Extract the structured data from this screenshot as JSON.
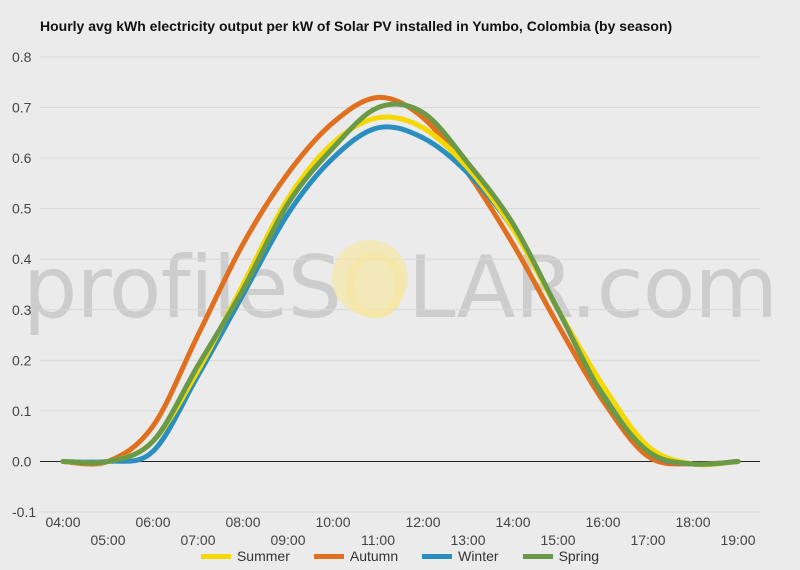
{
  "title": "Hourly avg kWh electricity output per kW of Solar PV installed in Yumbo, Colombia (by season)",
  "watermark": {
    "part1": "profileS",
    "part2": "O",
    "part3": "LAR.com"
  },
  "colors": {
    "background": "#ebebeb",
    "grid": "#d8d8d8",
    "zero_line": "#222222",
    "sun": "#f6e7a8"
  },
  "chart_data": {
    "type": "line",
    "title": "Hourly avg kWh electricity output per kW of Solar PV installed in Yumbo, Colombia (by season)",
    "xlabel": "",
    "ylabel": "",
    "x": [
      "04:00",
      "05:00",
      "06:00",
      "07:00",
      "08:00",
      "09:00",
      "10:00",
      "11:00",
      "12:00",
      "13:00",
      "14:00",
      "15:00",
      "16:00",
      "17:00",
      "18:00",
      "19:00"
    ],
    "x_ticks_upper": [
      "04:00",
      "06:00",
      "08:00",
      "10:00",
      "12:00",
      "14:00",
      "16:00",
      "18:00"
    ],
    "x_ticks_lower": [
      "05:00",
      "07:00",
      "09:00",
      "11:00",
      "13:00",
      "15:00",
      "17:00",
      "19:00"
    ],
    "y_ticks": [
      0.8,
      0.7,
      0.6,
      0.5,
      0.4,
      0.3,
      0.2,
      0.1,
      0.0,
      -0.1
    ],
    "y_tick_labels": [
      "0.8",
      "0.7",
      "0.6",
      "0.5",
      "0.4",
      "0.3",
      "0.2",
      "0.1",
      "0.0",
      "-0.1"
    ],
    "ylim": [
      -0.1,
      0.8
    ],
    "grid": true,
    "legend_position": "bottom",
    "series": [
      {
        "name": "Summer",
        "color": "#f5d800",
        "values": [
          0.0,
          0.0,
          0.04,
          0.18,
          0.35,
          0.52,
          0.63,
          0.68,
          0.66,
          0.58,
          0.46,
          0.3,
          0.15,
          0.03,
          -0.005,
          0.0
        ]
      },
      {
        "name": "Autumn",
        "color": "#e07020",
        "values": [
          0.0,
          0.0,
          0.07,
          0.25,
          0.43,
          0.57,
          0.67,
          0.72,
          0.68,
          0.57,
          0.43,
          0.27,
          0.12,
          0.01,
          -0.005,
          0.0
        ]
      },
      {
        "name": "Winter",
        "color": "#2a8fc0",
        "values": [
          0.0,
          0.0,
          0.02,
          0.17,
          0.33,
          0.49,
          0.6,
          0.66,
          0.64,
          0.57,
          0.46,
          0.3,
          0.14,
          0.02,
          -0.005,
          0.0
        ]
      },
      {
        "name": "Spring",
        "color": "#6a9a48",
        "values": [
          0.0,
          0.0,
          0.04,
          0.19,
          0.34,
          0.51,
          0.62,
          0.7,
          0.69,
          0.59,
          0.47,
          0.3,
          0.13,
          0.02,
          -0.005,
          0.0
        ]
      }
    ]
  }
}
